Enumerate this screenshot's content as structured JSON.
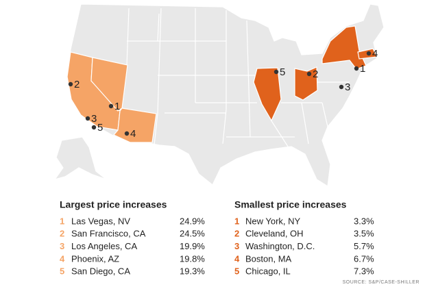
{
  "lists": [
    {
      "title": "Largest price increases",
      "items": [
        {
          "rank": "1",
          "city": "Las Vegas, NV",
          "value": "24.9%"
        },
        {
          "rank": "2",
          "city": "San Francisco, CA",
          "value": "24.5%"
        },
        {
          "rank": "3",
          "city": "Los Angeles, CA",
          "value": "19.9%"
        },
        {
          "rank": "4",
          "city": "Phoenix, AZ",
          "value": "19.8%"
        },
        {
          "rank": "5",
          "city": "San Diego, CA",
          "value": "19.3%"
        }
      ]
    },
    {
      "title": "Smallest price increases",
      "items": [
        {
          "rank": "1",
          "city": "New York, NY",
          "value": "3.3%"
        },
        {
          "rank": "2",
          "city": "Cleveland, OH",
          "value": "3.5%"
        },
        {
          "rank": "3",
          "city": "Washington, D.C.",
          "value": "5.7%"
        },
        {
          "rank": "4",
          "city": "Boston, MA",
          "value": "6.7%"
        },
        {
          "rank": "5",
          "city": "Chicago, IL",
          "value": "7.3%"
        }
      ]
    }
  ],
  "source": "SOURCE: S&P/CASE-SHILLER"
}
